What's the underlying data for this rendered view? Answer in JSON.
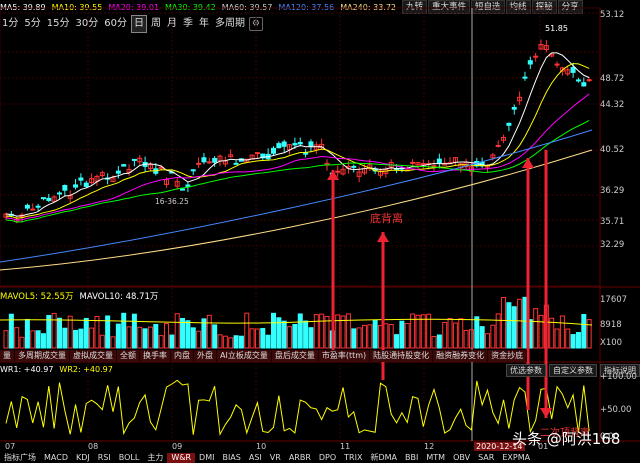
{
  "ma_bar": {
    "ma5": "MA5: 39.89",
    "ma10": "MA10: 39.55",
    "ma20": "MA20: 39.01",
    "ma30": "MA30: 39.42",
    "ma60": "MA60: 39.57",
    "ma120": "MA120: 37.56",
    "ma240": "MA240: 33.72"
  },
  "top_tabs": [
    "九转",
    "重大事件",
    "短自选",
    "均线",
    "探秘",
    "分享"
  ],
  "periods": [
    "1分",
    "5分",
    "15分",
    "30分",
    "60分",
    "日",
    "周",
    "月",
    "季",
    "年",
    "多周期"
  ],
  "active_period": "日",
  "price_axis": [
    "53.12",
    "48.72",
    "44.32",
    "40.52",
    "36.29",
    "35.71",
    "32.29"
  ],
  "annotations": {
    "peak": "51.85",
    "range": "16-36.25",
    "bottom_divergence": "底背离",
    "second_top": "二次顶背离"
  },
  "volume": {
    "header": "MAVOL5: 52.55万",
    "header2": "MAVOL10: 48.71万",
    "axis": [
      "17607",
      "8918",
      "X100"
    ]
  },
  "indicator_tabs": [
    "量",
    "多周期成交量",
    "虚拟成交量",
    "全额",
    "换手率",
    "内盘",
    "外盘",
    "AI立板成交量",
    "盘后成交量",
    "市盈率(ttm)",
    "陆股通持股变化",
    "融资融券变化",
    "资金抄底"
  ],
  "wr": {
    "header1": "WR1: +40.97",
    "header2": "WR2: +40.97",
    "buttons": [
      "优选参数",
      "自定义参数",
      "指标说明"
    ],
    "axis": [
      "+100.00",
      "+50.00",
      "0.00"
    ]
  },
  "date_axis": [
    "07",
    "08",
    "09",
    "10",
    "11",
    "12",
    "2020-12-14",
    "01"
  ],
  "bottom_tabs": [
    "指标广场",
    "MACD",
    "KDJ",
    "RSI",
    "BOLL",
    "主力",
    "W&R",
    "DMI",
    "BIAS",
    "ASI",
    "VR",
    "ARBR",
    "DPO",
    "TRIX",
    "新DMA",
    "BBI",
    "MTM",
    "OBV",
    "SAR",
    "EXPMA"
  ],
  "active_bottom_tab": "W&R",
  "watermark": "头条 @阿洪168",
  "colors": {
    "up": "#ff3333",
    "down": "#33ffff",
    "ma5": "#ffffff",
    "ma10": "#ffff00",
    "ma20": "#ff00ff",
    "ma30": "#00ff00",
    "ma60": "#cccccc",
    "ma120": "#4488ff",
    "ma240": "#ffdd88",
    "arrow": "#ee2233",
    "wr": "#ffff00"
  }
}
